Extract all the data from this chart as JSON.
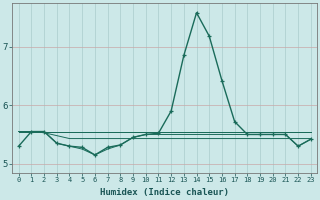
{
  "xlabel": "Humidex (Indice chaleur)",
  "x": [
    0,
    1,
    2,
    3,
    4,
    5,
    6,
    7,
    8,
    9,
    10,
    11,
    12,
    13,
    14,
    15,
    16,
    17,
    18,
    19,
    20,
    21,
    22,
    23
  ],
  "series": [
    [
      5.3,
      5.55,
      5.55,
      5.35,
      5.3,
      5.28,
      5.15,
      5.28,
      5.32,
      5.45,
      5.5,
      5.52,
      5.9,
      6.85,
      7.58,
      7.18,
      6.42,
      5.72,
      5.5,
      5.5,
      5.5,
      5.5,
      5.3,
      5.42
    ],
    [
      5.55,
      5.55,
      5.55,
      5.55,
      5.55,
      5.55,
      5.55,
      5.55,
      5.55,
      5.55,
      5.55,
      5.55,
      5.55,
      5.55,
      5.55,
      5.55,
      5.55,
      5.55,
      5.55,
      5.55,
      5.55,
      5.55,
      5.55,
      5.55
    ],
    [
      5.55,
      5.55,
      5.53,
      5.48,
      5.43,
      5.43,
      5.43,
      5.43,
      5.43,
      5.43,
      5.43,
      5.43,
      5.43,
      5.43,
      5.43,
      5.43,
      5.43,
      5.43,
      5.43,
      5.43,
      5.43,
      5.43,
      5.43,
      5.43
    ],
    [
      5.55,
      5.55,
      5.55,
      5.35,
      5.3,
      5.25,
      5.15,
      5.25,
      5.32,
      5.45,
      5.5,
      5.5,
      5.5,
      5.5,
      5.5,
      5.5,
      5.5,
      5.5,
      5.5,
      5.5,
      5.5,
      5.5,
      5.3,
      5.42
    ],
    [
      5.55,
      5.55,
      5.55,
      5.55,
      5.55,
      5.55,
      5.55,
      5.55,
      5.55,
      5.55,
      5.55,
      5.55,
      5.55,
      5.55,
      5.55,
      5.55,
      5.55,
      5.55,
      5.55,
      5.55,
      5.55,
      5.55,
      5.55,
      5.55
    ]
  ],
  "line_color": "#1a6b5a",
  "marker_color": "#1a6b5a",
  "bg_color": "#cce8e8",
  "grid_color_h": "#c8a8a8",
  "grid_color_v": "#aacccc",
  "ylim": [
    4.85,
    7.75
  ],
  "yticks": [
    5,
    6,
    7
  ],
  "xticks": [
    0,
    1,
    2,
    3,
    4,
    5,
    6,
    7,
    8,
    9,
    10,
    11,
    12,
    13,
    14,
    15,
    16,
    17,
    18,
    19,
    20,
    21,
    22,
    23
  ],
  "figw": 3.2,
  "figh": 2.0,
  "dpi": 100
}
